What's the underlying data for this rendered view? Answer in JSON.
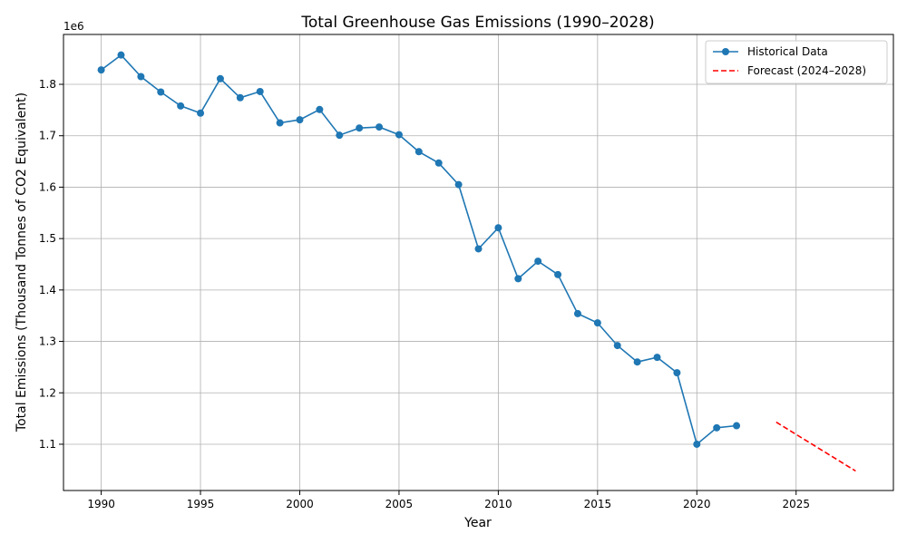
{
  "chart_data": {
    "type": "line",
    "title": "Total Greenhouse Gas Emissions (1990–2028)",
    "xlabel": "Year",
    "ylabel": "Total Emissions (Thousand Tonnes of CO2 Equivalent)",
    "offset_label": "1e6",
    "xlim": [
      1988.1,
      2029.9
    ],
    "ylim": [
      1010000,
      1897000
    ],
    "xticks": [
      1990,
      1995,
      2000,
      2005,
      2010,
      2015,
      2020,
      2025
    ],
    "xtick_labels": [
      "1990",
      "1995",
      "2000",
      "2005",
      "2010",
      "2015",
      "2020",
      "2025"
    ],
    "yticks": [
      1100000,
      1200000,
      1300000,
      1400000,
      1500000,
      1600000,
      1700000,
      1800000
    ],
    "ytick_labels": [
      "1.1",
      "1.2",
      "1.3",
      "1.4",
      "1.5",
      "1.6",
      "1.7",
      "1.8"
    ],
    "grid": true,
    "legend_position": "top-right",
    "series": [
      {
        "name": "Historical Data",
        "color": "#1f77b4",
        "style": "solid",
        "marker": "circle",
        "x": [
          1990,
          1991,
          1992,
          1993,
          1994,
          1995,
          1996,
          1997,
          1998,
          1999,
          2000,
          2001,
          2002,
          2003,
          2004,
          2005,
          2006,
          2007,
          2008,
          2009,
          2010,
          2011,
          2012,
          2013,
          2014,
          2015,
          2016,
          2017,
          2018,
          2019,
          2020,
          2021,
          2022
        ],
        "y": [
          1828000,
          1857000,
          1815000,
          1785000,
          1758000,
          1744000,
          1811000,
          1774000,
          1786000,
          1725000,
          1731000,
          1751000,
          1701000,
          1715000,
          1717000,
          1702000,
          1669000,
          1647000,
          1605000,
          1480000,
          1521000,
          1422000,
          1456000,
          1430000,
          1354000,
          1336000,
          1292000,
          1260000,
          1269000,
          1239000,
          1100000,
          1132000,
          1136000
        ]
      },
      {
        "name": "Forecast (2024–2028)",
        "color": "#ff0000",
        "style": "dashed",
        "marker": "none",
        "x": [
          2024,
          2028
        ],
        "y": [
          1143000,
          1048000
        ]
      }
    ]
  }
}
